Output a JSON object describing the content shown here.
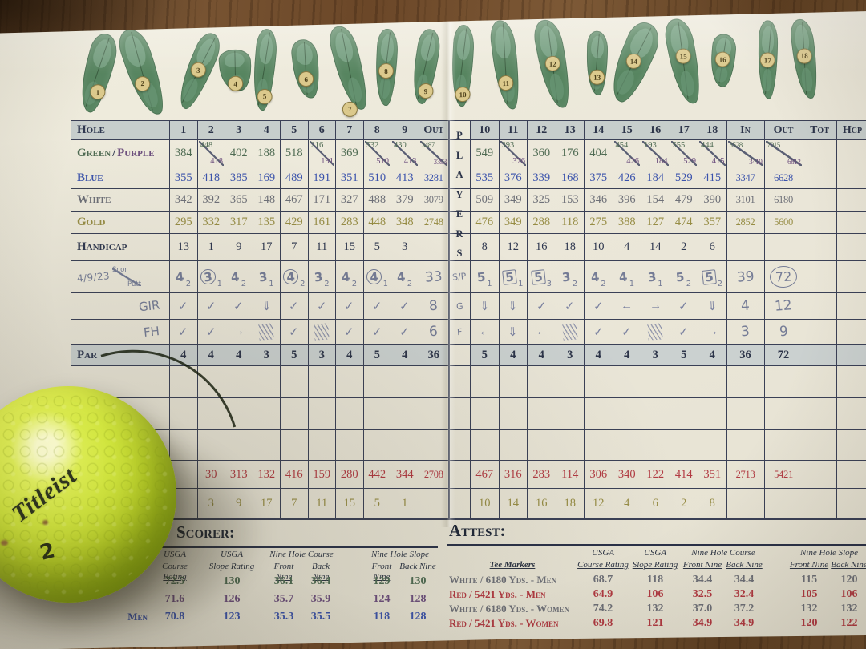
{
  "scorecard": {
    "players_label": "PLAYERS",
    "hole_diagrams": {
      "numbers": [
        "1",
        "2",
        "3",
        "4",
        "5",
        "6",
        "7",
        "8",
        "9",
        "10",
        "11",
        "12",
        "13",
        "14",
        "15",
        "16",
        "17",
        "18"
      ]
    },
    "rows": [
      {
        "id": "header",
        "type": "header",
        "label": "Hole",
        "front": [
          "1",
          "2",
          "3",
          "4",
          "5",
          "6",
          "7",
          "8",
          "9",
          "Out"
        ],
        "back": [
          "10",
          "11",
          "12",
          "13",
          "14",
          "15",
          "16",
          "17",
          "18",
          "In",
          "Out",
          "Tot",
          "Hcp"
        ]
      },
      {
        "id": "green-purple",
        "type": "tee",
        "split": true,
        "color": "green",
        "label2": {
          "a": "Green",
          "sep": " / ",
          "b": "Purple"
        },
        "front": [
          "384",
          "448/418",
          "402",
          "188",
          "518",
          "216/191",
          "369",
          "532/510",
          "430/413",
          "3487/3393"
        ],
        "back": [
          "549",
          "393/376",
          "360",
          "176",
          "404",
          "454/426",
          "193/184",
          "555/529",
          "444/415",
          "3528/3419",
          "7015/6812",
          "",
          ""
        ]
      },
      {
        "id": "blue",
        "type": "tee",
        "color": "blue",
        "label": "Blue",
        "front": [
          "355",
          "418",
          "385",
          "169",
          "489",
          "191",
          "351",
          "510",
          "413",
          "3281"
        ],
        "back": [
          "535",
          "376",
          "339",
          "168",
          "375",
          "426",
          "184",
          "529",
          "415",
          "3347",
          "6628",
          "",
          ""
        ]
      },
      {
        "id": "white",
        "type": "tee",
        "color": "white",
        "label": "White",
        "front": [
          "342",
          "392",
          "365",
          "148",
          "467",
          "171",
          "327",
          "488",
          "379",
          "3079"
        ],
        "back": [
          "509",
          "349",
          "325",
          "153",
          "346",
          "396",
          "154",
          "479",
          "390",
          "3101",
          "6180",
          "",
          ""
        ]
      },
      {
        "id": "gold",
        "type": "tee",
        "color": "gold",
        "label": "Gold",
        "front": [
          "295",
          "332",
          "317",
          "135",
          "429",
          "161",
          "283",
          "448",
          "348",
          "2748"
        ],
        "back": [
          "476",
          "349",
          "288",
          "118",
          "275",
          "388",
          "127",
          "474",
          "357",
          "2852",
          "5600",
          "",
          ""
        ]
      },
      {
        "id": "handicap",
        "type": "plain",
        "label": "Handicap",
        "front": [
          "13",
          "1",
          "9",
          "17",
          "7",
          "11",
          "15",
          "5",
          "3",
          ""
        ],
        "back": [
          "8",
          "12",
          "16",
          "18",
          "10",
          "4",
          "14",
          "2",
          "6",
          "",
          "",
          "",
          ""
        ]
      },
      {
        "id": "score",
        "type": "score",
        "hand": true,
        "label": "4/9/23",
        "label_frac": {
          "top": "Scor",
          "bot": "Putt"
        },
        "back_label": "S/P",
        "front": [
          {
            "v": "4",
            "p": "2"
          },
          {
            "v": "3",
            "p": "1",
            "mark": "circle"
          },
          {
            "v": "4",
            "p": "2"
          },
          {
            "v": "3",
            "p": "1"
          },
          {
            "v": "4",
            "p": "2",
            "mark": "circle"
          },
          {
            "v": "3",
            "p": "2"
          },
          {
            "v": "4",
            "p": "2"
          },
          {
            "v": "4",
            "p": "1",
            "mark": "circle"
          },
          {
            "v": "4",
            "p": "2"
          },
          {
            "v": "33"
          }
        ],
        "back": [
          {
            "v": "5",
            "p": "1"
          },
          {
            "v": "5",
            "p": "1",
            "mark": "box"
          },
          {
            "v": "5",
            "p": "3",
            "mark": "box"
          },
          {
            "v": "3",
            "p": "2"
          },
          {
            "v": "4",
            "p": "2"
          },
          {
            "v": "4",
            "p": "1"
          },
          {
            "v": "3",
            "p": "1"
          },
          {
            "v": "5",
            "p": "2"
          },
          {
            "v": "5",
            "p": "2",
            "mark": "box"
          },
          {
            "v": "39"
          },
          {
            "v": "72",
            "mark": "bigcircle"
          },
          {},
          {}
        ]
      },
      {
        "id": "gir",
        "type": "marks",
        "hand": true,
        "label": "GIR",
        "back_label": "G",
        "front": [
          "check",
          "check",
          "check",
          "darr",
          "check",
          "check",
          "check",
          "check",
          "check",
          "8"
        ],
        "back": [
          "darr",
          "darr",
          "check",
          "check",
          "check",
          "larr",
          "rarr",
          "check",
          "darr",
          "4",
          "12",
          "",
          ""
        ]
      },
      {
        "id": "fh",
        "type": "marks",
        "hand": true,
        "label": "FH",
        "back_label": "F",
        "front": [
          "check",
          "check",
          "rarr",
          "scrib",
          "check",
          "scrib",
          "check",
          "check",
          "check",
          "6"
        ],
        "back": [
          "larr",
          "darr",
          "larr",
          "scrib",
          "check",
          "check",
          "scrib",
          "check",
          "rarr",
          "3",
          "9",
          "",
          ""
        ]
      },
      {
        "id": "par",
        "type": "par",
        "label": "Par",
        "front": [
          "4",
          "4",
          "4",
          "3",
          "5",
          "3",
          "4",
          "5",
          "4",
          "36"
        ],
        "back": [
          "5",
          "4",
          "4",
          "3",
          "4",
          "4",
          "3",
          "5",
          "4",
          "36",
          "72",
          "",
          ""
        ]
      },
      {
        "id": "blank-1",
        "type": "blank",
        "label": "",
        "front": [
          "",
          "",
          "",
          "",
          "",
          "",
          "",
          "",
          "",
          ""
        ],
        "back": [
          "",
          "",
          "",
          "",
          "",
          "",
          "",
          "",
          "",
          "",
          "",
          "",
          ""
        ]
      },
      {
        "id": "blank-2",
        "type": "blank",
        "label": "",
        "front": [
          "",
          "",
          "",
          "",
          "",
          "",
          "",
          "",
          "",
          ""
        ],
        "back": [
          "",
          "",
          "",
          "",
          "",
          "",
          "",
          "",
          "",
          "",
          "",
          "",
          ""
        ]
      },
      {
        "id": "blank-3",
        "type": "blank",
        "label": "",
        "front": [
          "",
          "",
          "",
          "",
          "",
          "",
          "",
          "",
          "",
          ""
        ],
        "back": [
          "",
          "",
          "",
          "",
          "",
          "",
          "",
          "",
          "",
          "",
          "",
          "",
          ""
        ]
      },
      {
        "id": "red",
        "type": "tee",
        "color": "red",
        "label": "",
        "front": [
          "",
          "30",
          "313",
          "132",
          "416",
          "159",
          "280",
          "442",
          "344",
          "2708"
        ],
        "back": [
          "467",
          "316",
          "283",
          "114",
          "306",
          "340",
          "122",
          "414",
          "351",
          "2713",
          "5421",
          "",
          ""
        ]
      },
      {
        "id": "womens-handicap",
        "type": "plain",
        "color": "gold",
        "label": "",
        "front": [
          "",
          "3",
          "9",
          "17",
          "7",
          "11",
          "15",
          "5",
          "1",
          ""
        ],
        "back": [
          "10",
          "14",
          "16",
          "18",
          "12",
          "4",
          "6",
          "2",
          "8",
          "",
          "",
          "",
          ""
        ]
      }
    ]
  },
  "ratings_headers": {
    "usga": "USGA",
    "course_rating": "Course Rating",
    "slope_rating": "Slope Rating",
    "nine_hole_course": "Nine Hole Course",
    "nine_hole_slope": "Nine Hole Slope",
    "front_nine": "Front Nine",
    "back_nine": "Back Nine"
  },
  "scorer_section": {
    "title": "Scorer:",
    "rows": [
      {
        "tee": "",
        "color": "green",
        "course": "72.5",
        "slope": "130",
        "nhc_front": "36.1",
        "nhc_back": "36.4",
        "nhs_front": "129",
        "nhs_back": "130"
      },
      {
        "tee": "",
        "color": "purple",
        "course": "71.6",
        "slope": "126",
        "nhc_front": "35.7",
        "nhc_back": "35.9",
        "nhs_front": "124",
        "nhs_back": "128"
      },
      {
        "tee": "Men",
        "color": "blue",
        "course": "70.8",
        "slope": "123",
        "nhc_front": "35.3",
        "nhc_back": "35.5",
        "nhs_front": "118",
        "nhs_back": "128"
      }
    ]
  },
  "attest_section": {
    "title": "Attest:",
    "tee_markers_header": "Tee Markers",
    "rows": [
      {
        "tee": "White / 6180 Yds. - Men",
        "color": "white",
        "course": "68.7",
        "slope": "118",
        "nhc_front": "34.4",
        "nhc_back": "34.4",
        "nhs_front": "115",
        "nhs_back": "120"
      },
      {
        "tee": "Red / 5421 Yds. - Men",
        "color": "red",
        "course": "64.9",
        "slope": "106",
        "nhc_front": "32.5",
        "nhc_back": "32.4",
        "nhs_front": "105",
        "nhs_back": "106"
      },
      {
        "tee": "White / 6180 Yds. - Women",
        "color": "white",
        "course": "74.2",
        "slope": "132",
        "nhc_front": "37.0",
        "nhc_back": "37.2",
        "nhs_front": "132",
        "nhs_back": "132"
      },
      {
        "tee": "Red / 5421 Yds. - Women",
        "color": "red",
        "course": "69.8",
        "slope": "121",
        "nhc_front": "34.9",
        "nhc_back": "34.9",
        "nhs_front": "120",
        "nhs_back": "122"
      }
    ]
  },
  "ball": {
    "brand": "Titleist",
    "number": "2"
  },
  "colors": {
    "green": "#4f6b53",
    "purple": "#6d4f7e",
    "blue": "#3b53ac",
    "white_tee": "#6e7078",
    "gold": "#978d45",
    "red": "#b23a42",
    "pencil": "#757c96",
    "ball_yellow": "#d3e740",
    "card": "#ebe7d9"
  }
}
